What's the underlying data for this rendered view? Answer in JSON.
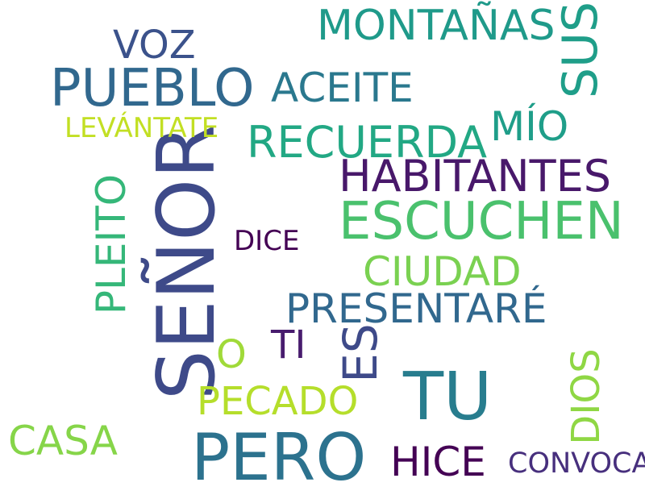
{
  "words": [
    {
      "id": "senor",
      "text": "SEÑOR",
      "color": "#3e4a89"
    },
    {
      "id": "pero",
      "text": "PERO",
      "color": "#2c728e"
    },
    {
      "id": "tu",
      "text": "TU",
      "color": "#287d8e"
    },
    {
      "id": "escuchen",
      "text": "ESCUCHEN",
      "color": "#4ac16d"
    },
    {
      "id": "pueblo",
      "text": "PUEBLO",
      "color": "#31688e"
    },
    {
      "id": "habitantes",
      "text": "HABITANTES",
      "color": "#48186a"
    },
    {
      "id": "recuerda",
      "text": "RECUERDA",
      "color": "#22a884"
    },
    {
      "id": "montanas",
      "text": "MONTAÑAS",
      "color": "#1f9a8a"
    },
    {
      "id": "sus",
      "text": "SUS",
      "color": "#1f9e89"
    },
    {
      "id": "es",
      "text": "ES",
      "color": "#3e4a89"
    },
    {
      "id": "presentare",
      "text": "PRESENTARÉ",
      "color": "#31688e"
    },
    {
      "id": "aceite",
      "text": "ACEITE",
      "color": "#2a788e"
    },
    {
      "id": "voz",
      "text": "VOZ",
      "color": "#3b528b"
    },
    {
      "id": "mio",
      "text": "MÍO",
      "color": "#1f9e89"
    },
    {
      "id": "ciudad",
      "text": "CIUDAD",
      "color": "#7ad151"
    },
    {
      "id": "pleito",
      "text": "PLEITO",
      "color": "#35b779"
    },
    {
      "id": "pecado",
      "text": "PECADO",
      "color": "#b5de2b"
    },
    {
      "id": "hice",
      "text": "HICE",
      "color": "#440154"
    },
    {
      "id": "casa",
      "text": "CASA",
      "color": "#86d549"
    },
    {
      "id": "dios",
      "text": "DIOS",
      "color": "#8fd744"
    },
    {
      "id": "ti",
      "text": "TI",
      "color": "#481c6e"
    },
    {
      "id": "levantate",
      "text": "LEVÁNTATE",
      "color": "#c2df23"
    },
    {
      "id": "o",
      "text": "O",
      "color": "#a0da39"
    },
    {
      "id": "convoca",
      "text": "CONVOCA",
      "color": "#472f7d"
    },
    {
      "id": "dice",
      "text": "DICE",
      "color": "#440154"
    }
  ]
}
